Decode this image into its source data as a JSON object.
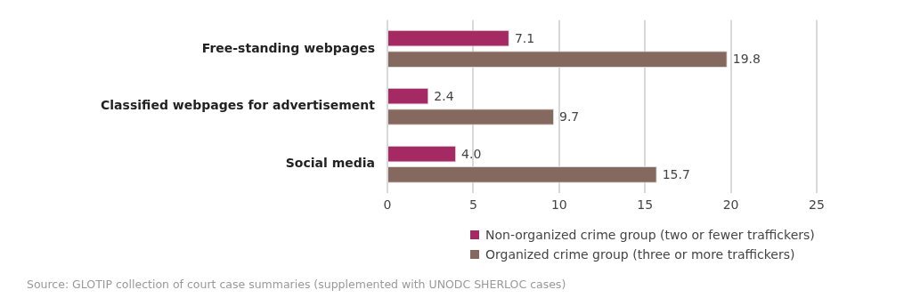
{
  "chart_data": {
    "type": "bar",
    "orientation": "horizontal",
    "categories": [
      "Free-standing webpages",
      "Classified webpages for advertisement",
      "Social media"
    ],
    "series": [
      {
        "name": "Non-organized crime group (two or fewer traffickers)",
        "color": "#a52a64",
        "values": [
          7.1,
          2.4,
          4.0
        ],
        "value_labels": [
          "7.1",
          "2.4",
          "4.0"
        ]
      },
      {
        "name": "Organized crime group (three or more traffickers)",
        "color": "#86695e",
        "values": [
          19.8,
          9.7,
          15.7
        ],
        "value_labels": [
          "19.8",
          "9.7",
          "15.7"
        ]
      }
    ],
    "xlim": [
      0,
      25
    ],
    "xticks": [
      0,
      5,
      10,
      15,
      20,
      25
    ],
    "grid": "x",
    "legend": "bottom",
    "annotations": [
      "Source: GLOTIP collection of court case summaries (supplemented with UNODC SHERLOC cases)"
    ]
  }
}
